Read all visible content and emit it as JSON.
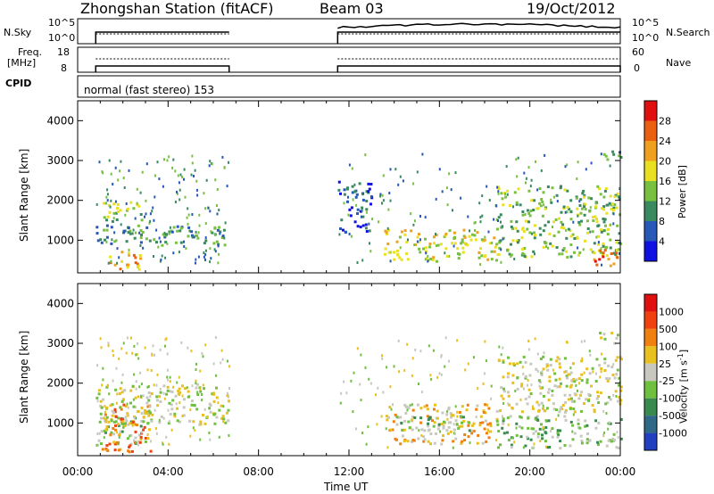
{
  "header": {
    "station": "Zhongshan Station (fitACF)",
    "beam": "Beam 03",
    "date": "19/Oct/2012"
  },
  "side_labels": {
    "nsky": "N.Sky",
    "freq": "Freq.",
    "mhz": "[MHz]",
    "cpid": "CPID",
    "nsearch": "N.Search",
    "nave": "Nave"
  },
  "small_ticks": {
    "nsky_top": "10^5",
    "nsky_bottom": "10^0",
    "freq_top": "18",
    "freq_bottom": "8",
    "nsearch_top": "10^5",
    "nsearch_bottom": "10^0",
    "nave_top": "60",
    "nave_bottom": "0"
  },
  "cpid_text": "normal (fast stereo) 153",
  "chart_data": [
    {
      "type": "heatmap",
      "name": "power",
      "ylabel": "Slant Range [km]",
      "yticks": [
        1000,
        2000,
        3000,
        4000
      ],
      "ylim": [
        180,
        4500
      ],
      "xlim": [
        0,
        24
      ],
      "colorbar": {
        "label": "Power [dB]",
        "ticks": [
          "4",
          "8",
          "12",
          "16",
          "20",
          "24",
          "28"
        ],
        "colors": [
          "#1010e0",
          "#2858b8",
          "#3a8a60",
          "#78c040",
          "#e8e020",
          "#f0a020",
          "#e86010",
          "#e01010"
        ]
      },
      "data_windows_hours": [
        [
          0.8,
          6.7
        ],
        [
          11.5,
          24
        ]
      ],
      "echo_regions": [
        {
          "t0": 0.8,
          "t1": 6.7,
          "r0": 900,
          "r1": 1400,
          "level": 2
        },
        {
          "t0": 0.9,
          "t1": 2.8,
          "r0": 1500,
          "r1": 2000,
          "level": 3
        },
        {
          "t0": 1.2,
          "t1": 2.8,
          "r0": 300,
          "r1": 800,
          "level": 5
        },
        {
          "t0": 11.5,
          "t1": 13.0,
          "r0": 1200,
          "r1": 2500,
          "level": 1
        },
        {
          "t0": 13.5,
          "t1": 18.5,
          "r0": 500,
          "r1": 1300,
          "level": 4
        },
        {
          "t0": 18.5,
          "t1": 24.0,
          "r0": 600,
          "r1": 2400,
          "level": 3
        },
        {
          "t0": 22.8,
          "t1": 24.0,
          "r0": 300,
          "r1": 800,
          "level": 6
        },
        {
          "t0": 23.0,
          "t1": 24.0,
          "r0": 3000,
          "r1": 3300,
          "level": 2
        }
      ]
    },
    {
      "type": "heatmap",
      "name": "velocity",
      "ylabel": "Slant Range [km]",
      "yticks": [
        1000,
        2000,
        3000,
        4000
      ],
      "ylim": [
        180,
        4500
      ],
      "xlim": [
        0,
        24
      ],
      "xlabel": "Time UT",
      "xticks": [
        "00:00",
        "04:00",
        "08:00",
        "12:00",
        "16:00",
        "20:00",
        "00:00"
      ],
      "colorbar": {
        "label": "Velocity [m s",
        "unit_sup": "-1",
        "unit_end": "]",
        "ticks": [
          "1000",
          "500",
          "100",
          "25",
          "-25",
          "-100",
          "-500",
          "-1000"
        ],
        "colors": [
          "#2040c0",
          "#306888",
          "#3a8a50",
          "#70c040",
          "#c8c8c0",
          "#e8c020",
          "#f08010",
          "#f04010",
          "#e01010"
        ]
      },
      "data_windows_hours": [
        [
          0.8,
          6.7
        ],
        [
          11.5,
          24
        ]
      ],
      "echo_regions": [
        {
          "t0": 0.8,
          "t1": 3.0,
          "r0": 500,
          "r1": 1200,
          "level": 3
        },
        {
          "t0": 1.0,
          "t1": 3.2,
          "r0": 300,
          "r1": 1500,
          "level": 6
        },
        {
          "t0": 0.8,
          "t1": 6.7,
          "r0": 1000,
          "r1": 2000,
          "level": 4
        },
        {
          "t0": 13.5,
          "t1": 18.5,
          "r0": 500,
          "r1": 1500,
          "level": 5
        },
        {
          "t0": 14.0,
          "t1": 17.5,
          "r0": 800,
          "r1": 1200,
          "level": 3
        },
        {
          "t0": 18.5,
          "t1": 24.0,
          "r0": 400,
          "r1": 1200,
          "level": 3
        },
        {
          "t0": 18.5,
          "t1": 24.0,
          "r0": 1300,
          "r1": 2700,
          "level": 4
        },
        {
          "t0": 23.0,
          "t1": 24.0,
          "r0": 3000,
          "r1": 3300,
          "level": 4
        }
      ]
    }
  ]
}
